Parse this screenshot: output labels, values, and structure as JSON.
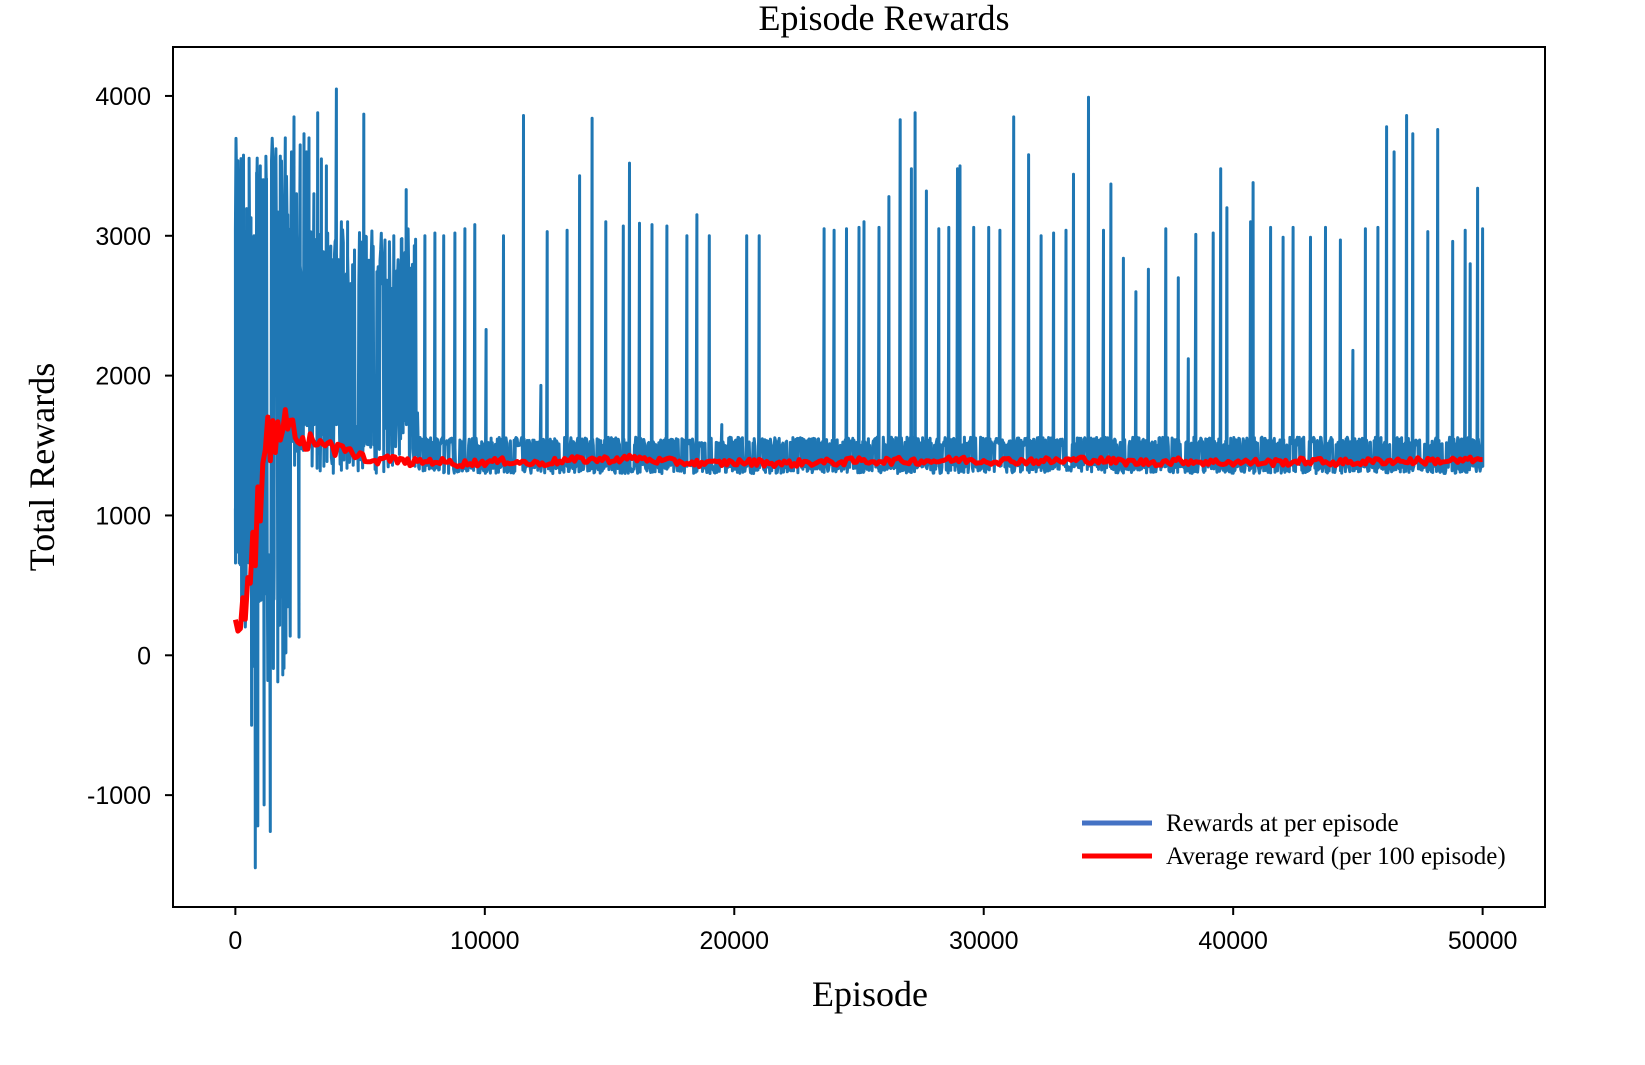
{
  "chart_data": {
    "type": "line",
    "title": "Episode Rewards",
    "xlabel": "Episode",
    "ylabel": "Total Rewards",
    "xlim": [
      -2500,
      52500
    ],
    "ylim": [
      -1800,
      4350
    ],
    "x_ticks": [
      0,
      10000,
      20000,
      30000,
      40000,
      50000
    ],
    "y_ticks": [
      -1000,
      0,
      1000,
      2000,
      3000,
      4000
    ],
    "x_tick_labels": [
      "0",
      "10000",
      "20000",
      "30000",
      "40000",
      "50000"
    ],
    "y_tick_labels": [
      "-1000",
      "0",
      "1000",
      "2000",
      "3000",
      "4000"
    ],
    "grid": false,
    "legend_position": "bottom-right",
    "series": [
      {
        "name": "Rewards at per episode",
        "color": "#1f77b4",
        "dense_band": [
          {
            "x_start": 0,
            "x_end": 2200,
            "y_low": -100,
            "y_high": 3700
          },
          {
            "x_start": 400,
            "x_end": 7300,
            "y_low": 1300,
            "y_high": 3050
          },
          {
            "x_start": 7300,
            "x_end": 50000,
            "y_low": 1300,
            "y_high": 1560
          }
        ],
        "spikes": [
          {
            "x": 0,
            "y": 1050
          },
          {
            "x": 150,
            "y": 1650
          },
          {
            "x": 300,
            "y": 1350
          },
          {
            "x": 450,
            "y": 2000
          },
          {
            "x": 550,
            "y": 2380
          },
          {
            "x": 600,
            "y": 1500
          },
          {
            "x": 650,
            "y": -500
          },
          {
            "x": 750,
            "y": 3000
          },
          {
            "x": 800,
            "y": -1520
          },
          {
            "x": 850,
            "y": 3450
          },
          {
            "x": 900,
            "y": -1220
          },
          {
            "x": 1000,
            "y": 3500
          },
          {
            "x": 1050,
            "y": 3400
          },
          {
            "x": 1150,
            "y": -1070
          },
          {
            "x": 1250,
            "y": 3300
          },
          {
            "x": 1300,
            "y": -180
          },
          {
            "x": 1400,
            "y": -1260
          },
          {
            "x": 1550,
            "y": 3520
          },
          {
            "x": 1700,
            "y": -190
          },
          {
            "x": 1800,
            "y": 3570
          },
          {
            "x": 1900,
            "y": -140
          },
          {
            "x": 2000,
            "y": 3700
          },
          {
            "x": 2100,
            "y": 3150
          },
          {
            "x": 2250,
            "y": 3600
          },
          {
            "x": 2350,
            "y": 3850
          },
          {
            "x": 2450,
            "y": 3300
          },
          {
            "x": 2550,
            "y": 130
          },
          {
            "x": 2600,
            "y": 3650
          },
          {
            "x": 2750,
            "y": 3730
          },
          {
            "x": 2850,
            "y": 3600
          },
          {
            "x": 2950,
            "y": 3700
          },
          {
            "x": 3150,
            "y": 3300
          },
          {
            "x": 3300,
            "y": 3880
          },
          {
            "x": 3450,
            "y": 3550
          },
          {
            "x": 3650,
            "y": 3500
          },
          {
            "x": 4050,
            "y": 4050
          },
          {
            "x": 4250,
            "y": 3100
          },
          {
            "x": 4500,
            "y": 3100
          },
          {
            "x": 5150,
            "y": 3870
          },
          {
            "x": 6850,
            "y": 3330
          },
          {
            "x": 7600,
            "y": 3000
          },
          {
            "x": 8000,
            "y": 3020
          },
          {
            "x": 8350,
            "y": 3000
          },
          {
            "x": 8800,
            "y": 3020
          },
          {
            "x": 9200,
            "y": 3050
          },
          {
            "x": 9600,
            "y": 3080
          },
          {
            "x": 10050,
            "y": 2330
          },
          {
            "x": 10750,
            "y": 3000
          },
          {
            "x": 11550,
            "y": 3860
          },
          {
            "x": 12250,
            "y": 1930
          },
          {
            "x": 12500,
            "y": 3030
          },
          {
            "x": 13300,
            "y": 3040
          },
          {
            "x": 13800,
            "y": 3430
          },
          {
            "x": 14300,
            "y": 3840
          },
          {
            "x": 14850,
            "y": 3100
          },
          {
            "x": 15550,
            "y": 3070
          },
          {
            "x": 15800,
            "y": 3520
          },
          {
            "x": 16200,
            "y": 3090
          },
          {
            "x": 16700,
            "y": 3080
          },
          {
            "x": 17300,
            "y": 3070
          },
          {
            "x": 18100,
            "y": 3000
          },
          {
            "x": 18500,
            "y": 3150
          },
          {
            "x": 19000,
            "y": 3000
          },
          {
            "x": 19500,
            "y": 1650
          },
          {
            "x": 20500,
            "y": 3000
          },
          {
            "x": 21000,
            "y": 3000
          },
          {
            "x": 23600,
            "y": 3050
          },
          {
            "x": 24000,
            "y": 3040
          },
          {
            "x": 24500,
            "y": 3050
          },
          {
            "x": 25000,
            "y": 3060
          },
          {
            "x": 25200,
            "y": 3100
          },
          {
            "x": 25800,
            "y": 3060
          },
          {
            "x": 26200,
            "y": 3280
          },
          {
            "x": 26650,
            "y": 3830
          },
          {
            "x": 27100,
            "y": 3480
          },
          {
            "x": 27250,
            "y": 3880
          },
          {
            "x": 27700,
            "y": 3320
          },
          {
            "x": 28200,
            "y": 3050
          },
          {
            "x": 28600,
            "y": 3060
          },
          {
            "x": 28950,
            "y": 3480
          },
          {
            "x": 29050,
            "y": 3500
          },
          {
            "x": 29600,
            "y": 3060
          },
          {
            "x": 30200,
            "y": 3060
          },
          {
            "x": 30650,
            "y": 3040
          },
          {
            "x": 31200,
            "y": 3850
          },
          {
            "x": 31800,
            "y": 3580
          },
          {
            "x": 32300,
            "y": 3000
          },
          {
            "x": 32800,
            "y": 3020
          },
          {
            "x": 33300,
            "y": 3040
          },
          {
            "x": 33600,
            "y": 3440
          },
          {
            "x": 34200,
            "y": 3990
          },
          {
            "x": 34800,
            "y": 3040
          },
          {
            "x": 35100,
            "y": 3370
          },
          {
            "x": 35600,
            "y": 2840
          },
          {
            "x": 36100,
            "y": 2600
          },
          {
            "x": 36600,
            "y": 2760
          },
          {
            "x": 37300,
            "y": 3050
          },
          {
            "x": 37800,
            "y": 2700
          },
          {
            "x": 38200,
            "y": 2120
          },
          {
            "x": 38500,
            "y": 3010
          },
          {
            "x": 39200,
            "y": 3020
          },
          {
            "x": 39500,
            "y": 3480
          },
          {
            "x": 39750,
            "y": 3200
          },
          {
            "x": 40700,
            "y": 3100
          },
          {
            "x": 40800,
            "y": 3380
          },
          {
            "x": 41500,
            "y": 3060
          },
          {
            "x": 42000,
            "y": 2990
          },
          {
            "x": 42400,
            "y": 3060
          },
          {
            "x": 43100,
            "y": 2990
          },
          {
            "x": 43700,
            "y": 3060
          },
          {
            "x": 44300,
            "y": 2970
          },
          {
            "x": 44800,
            "y": 2180
          },
          {
            "x": 45300,
            "y": 3050
          },
          {
            "x": 45800,
            "y": 3060
          },
          {
            "x": 46150,
            "y": 3780
          },
          {
            "x": 46450,
            "y": 3600
          },
          {
            "x": 46950,
            "y": 3860
          },
          {
            "x": 47200,
            "y": 3730
          },
          {
            "x": 47800,
            "y": 3030
          },
          {
            "x": 48200,
            "y": 3760
          },
          {
            "x": 48800,
            "y": 2960
          },
          {
            "x": 49300,
            "y": 3040
          },
          {
            "x": 49500,
            "y": 2800
          },
          {
            "x": 49800,
            "y": 3340
          },
          {
            "x": 50000,
            "y": 3050
          }
        ]
      },
      {
        "name": "Average reward (per 100 episode)",
        "color": "#ff0000",
        "points": [
          [
            0,
            200
          ],
          [
            200,
            150
          ],
          [
            300,
            420
          ],
          [
            400,
            250
          ],
          [
            500,
            550
          ],
          [
            600,
            500
          ],
          [
            700,
            900
          ],
          [
            800,
            700
          ],
          [
            900,
            1200
          ],
          [
            1000,
            1000
          ],
          [
            1100,
            1350
          ],
          [
            1200,
            1500
          ],
          [
            1300,
            1720
          ],
          [
            1400,
            1450
          ],
          [
            1500,
            1660
          ],
          [
            1600,
            1500
          ],
          [
            1700,
            1640
          ],
          [
            1800,
            1550
          ],
          [
            1900,
            1620
          ],
          [
            2000,
            1700
          ],
          [
            2100,
            1640
          ],
          [
            2200,
            1720
          ],
          [
            2400,
            1600
          ],
          [
            2600,
            1550
          ],
          [
            2800,
            1500
          ],
          [
            3000,
            1560
          ],
          [
            3200,
            1480
          ],
          [
            3400,
            1550
          ],
          [
            3600,
            1500
          ],
          [
            3800,
            1540
          ],
          [
            4000,
            1450
          ],
          [
            4200,
            1520
          ],
          [
            4400,
            1440
          ],
          [
            4600,
            1470
          ],
          [
            4800,
            1400
          ],
          [
            5000,
            1430
          ],
          [
            5500,
            1380
          ],
          [
            6000,
            1410
          ],
          [
            7000,
            1380
          ],
          [
            8000,
            1390
          ],
          [
            9000,
            1370
          ],
          [
            10000,
            1380
          ],
          [
            11000,
            1390
          ],
          [
            12000,
            1370
          ],
          [
            13000,
            1390
          ],
          [
            14000,
            1400
          ],
          [
            15000,
            1400
          ],
          [
            16000,
            1410
          ],
          [
            17000,
            1390
          ],
          [
            18000,
            1380
          ],
          [
            19000,
            1370
          ],
          [
            20000,
            1380
          ],
          [
            21000,
            1380
          ],
          [
            22000,
            1370
          ],
          [
            23000,
            1380
          ],
          [
            24000,
            1380
          ],
          [
            25000,
            1390
          ],
          [
            26000,
            1390
          ],
          [
            27000,
            1390
          ],
          [
            28000,
            1390
          ],
          [
            29000,
            1400
          ],
          [
            30000,
            1390
          ],
          [
            31000,
            1390
          ],
          [
            32000,
            1390
          ],
          [
            33000,
            1390
          ],
          [
            34000,
            1400
          ],
          [
            35000,
            1390
          ],
          [
            36000,
            1380
          ],
          [
            37000,
            1380
          ],
          [
            38000,
            1390
          ],
          [
            39000,
            1380
          ],
          [
            40000,
            1380
          ],
          [
            41000,
            1380
          ],
          [
            42000,
            1380
          ],
          [
            43000,
            1390
          ],
          [
            44000,
            1380
          ],
          [
            45000,
            1380
          ],
          [
            46000,
            1390
          ],
          [
            47000,
            1390
          ],
          [
            48000,
            1390
          ],
          [
            49000,
            1390
          ],
          [
            50000,
            1400
          ]
        ]
      }
    ]
  }
}
